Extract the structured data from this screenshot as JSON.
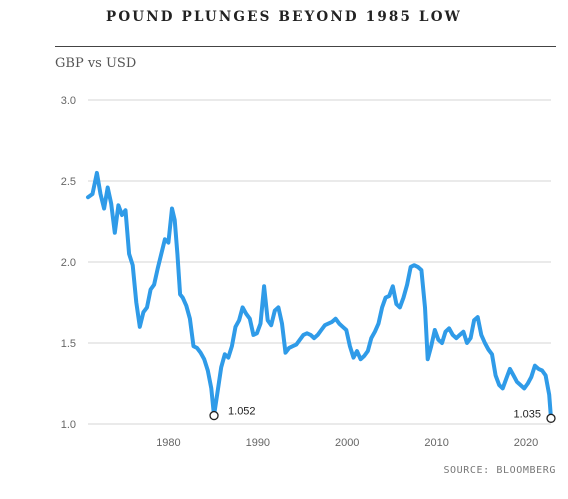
{
  "chart_data": {
    "type": "line",
    "title": "POUND PLUNGES BEYOND 1985 LOW",
    "ylabel": "GBP vs USD",
    "source": "SOURCE: BLOOMBERG",
    "ylim": [
      1.0,
      3.0
    ],
    "xlim": [
      1971,
      2022.8
    ],
    "y_ticks": [
      "1.0",
      "1.5",
      "2.0",
      "2.5",
      "3.0"
    ],
    "x_ticks": [
      "1980",
      "1990",
      "2000",
      "2010",
      "2020"
    ],
    "grid": true,
    "line_color": "#2f9be8",
    "series": [
      {
        "x": [
          1971.0,
          1971.5,
          1972.0,
          1972.4,
          1972.8,
          1973.2,
          1973.6,
          1974.0,
          1974.4,
          1974.8,
          1975.2,
          1975.6,
          1976.0,
          1976.4,
          1976.8,
          1977.2,
          1977.6,
          1978.0,
          1978.4,
          1978.8,
          1979.2,
          1979.6,
          1980.0,
          1980.4,
          1980.7,
          1981.0,
          1981.3,
          1981.6,
          1982.0,
          1982.4,
          1982.8,
          1983.2,
          1983.6,
          1984.0,
          1984.4,
          1984.8,
          1985.1,
          1985.5,
          1985.9,
          1986.3,
          1986.7,
          1987.1,
          1987.5,
          1987.9,
          1988.3,
          1988.7,
          1989.1,
          1989.5,
          1989.9,
          1990.3,
          1990.7,
          1991.1,
          1991.5,
          1991.9,
          1992.3,
          1992.7,
          1993.1,
          1993.5,
          1993.9,
          1994.3,
          1994.7,
          1995.1,
          1995.5,
          1995.9,
          1996.3,
          1996.7,
          1997.1,
          1997.5,
          1997.9,
          1998.3,
          1998.7,
          1999.1,
          1999.5,
          1999.9,
          2000.3,
          2000.7,
          2001.1,
          2001.5,
          2001.9,
          2002.3,
          2002.7,
          2003.1,
          2003.5,
          2003.9,
          2004.3,
          2004.7,
          2005.1,
          2005.5,
          2005.9,
          2006.3,
          2006.7,
          2007.1,
          2007.5,
          2007.9,
          2008.3,
          2008.7,
          2009.0,
          2009.4,
          2009.8,
          2010.2,
          2010.6,
          2011.0,
          2011.4,
          2011.8,
          2012.2,
          2012.6,
          2013.0,
          2013.4,
          2013.8,
          2014.2,
          2014.6,
          2015.0,
          2015.4,
          2015.8,
          2016.2,
          2016.6,
          2017.0,
          2017.4,
          2017.8,
          2018.2,
          2018.6,
          2019.0,
          2019.4,
          2019.8,
          2020.2,
          2020.6,
          2021.0,
          2021.4,
          2021.8,
          2022.2,
          2022.6,
          2022.8
        ],
        "values": [
          2.4,
          2.42,
          2.55,
          2.42,
          2.33,
          2.46,
          2.36,
          2.18,
          2.35,
          2.29,
          2.32,
          2.05,
          1.98,
          1.75,
          1.6,
          1.69,
          1.72,
          1.83,
          1.86,
          1.96,
          2.05,
          2.14,
          2.12,
          2.33,
          2.26,
          2.05,
          1.8,
          1.78,
          1.73,
          1.65,
          1.48,
          1.47,
          1.44,
          1.4,
          1.33,
          1.22,
          1.052,
          1.2,
          1.35,
          1.43,
          1.41,
          1.48,
          1.6,
          1.64,
          1.72,
          1.68,
          1.65,
          1.55,
          1.56,
          1.62,
          1.85,
          1.64,
          1.61,
          1.7,
          1.72,
          1.62,
          1.44,
          1.47,
          1.48,
          1.49,
          1.52,
          1.55,
          1.56,
          1.55,
          1.53,
          1.55,
          1.58,
          1.61,
          1.62,
          1.63,
          1.65,
          1.62,
          1.6,
          1.58,
          1.48,
          1.41,
          1.45,
          1.4,
          1.42,
          1.45,
          1.53,
          1.57,
          1.62,
          1.72,
          1.78,
          1.79,
          1.85,
          1.74,
          1.72,
          1.78,
          1.86,
          1.97,
          1.98,
          1.97,
          1.95,
          1.72,
          1.4,
          1.48,
          1.58,
          1.52,
          1.5,
          1.57,
          1.59,
          1.55,
          1.53,
          1.55,
          1.57,
          1.5,
          1.53,
          1.64,
          1.66,
          1.55,
          1.5,
          1.46,
          1.43,
          1.3,
          1.24,
          1.22,
          1.28,
          1.34,
          1.3,
          1.26,
          1.24,
          1.22,
          1.25,
          1.29,
          1.36,
          1.34,
          1.33,
          1.3,
          1.18,
          1.035
        ]
      }
    ],
    "annotations": [
      {
        "x": 1985.1,
        "y": 1.052,
        "label": "1.052"
      },
      {
        "x": 2022.8,
        "y": 1.035,
        "label": "1.035"
      }
    ]
  }
}
